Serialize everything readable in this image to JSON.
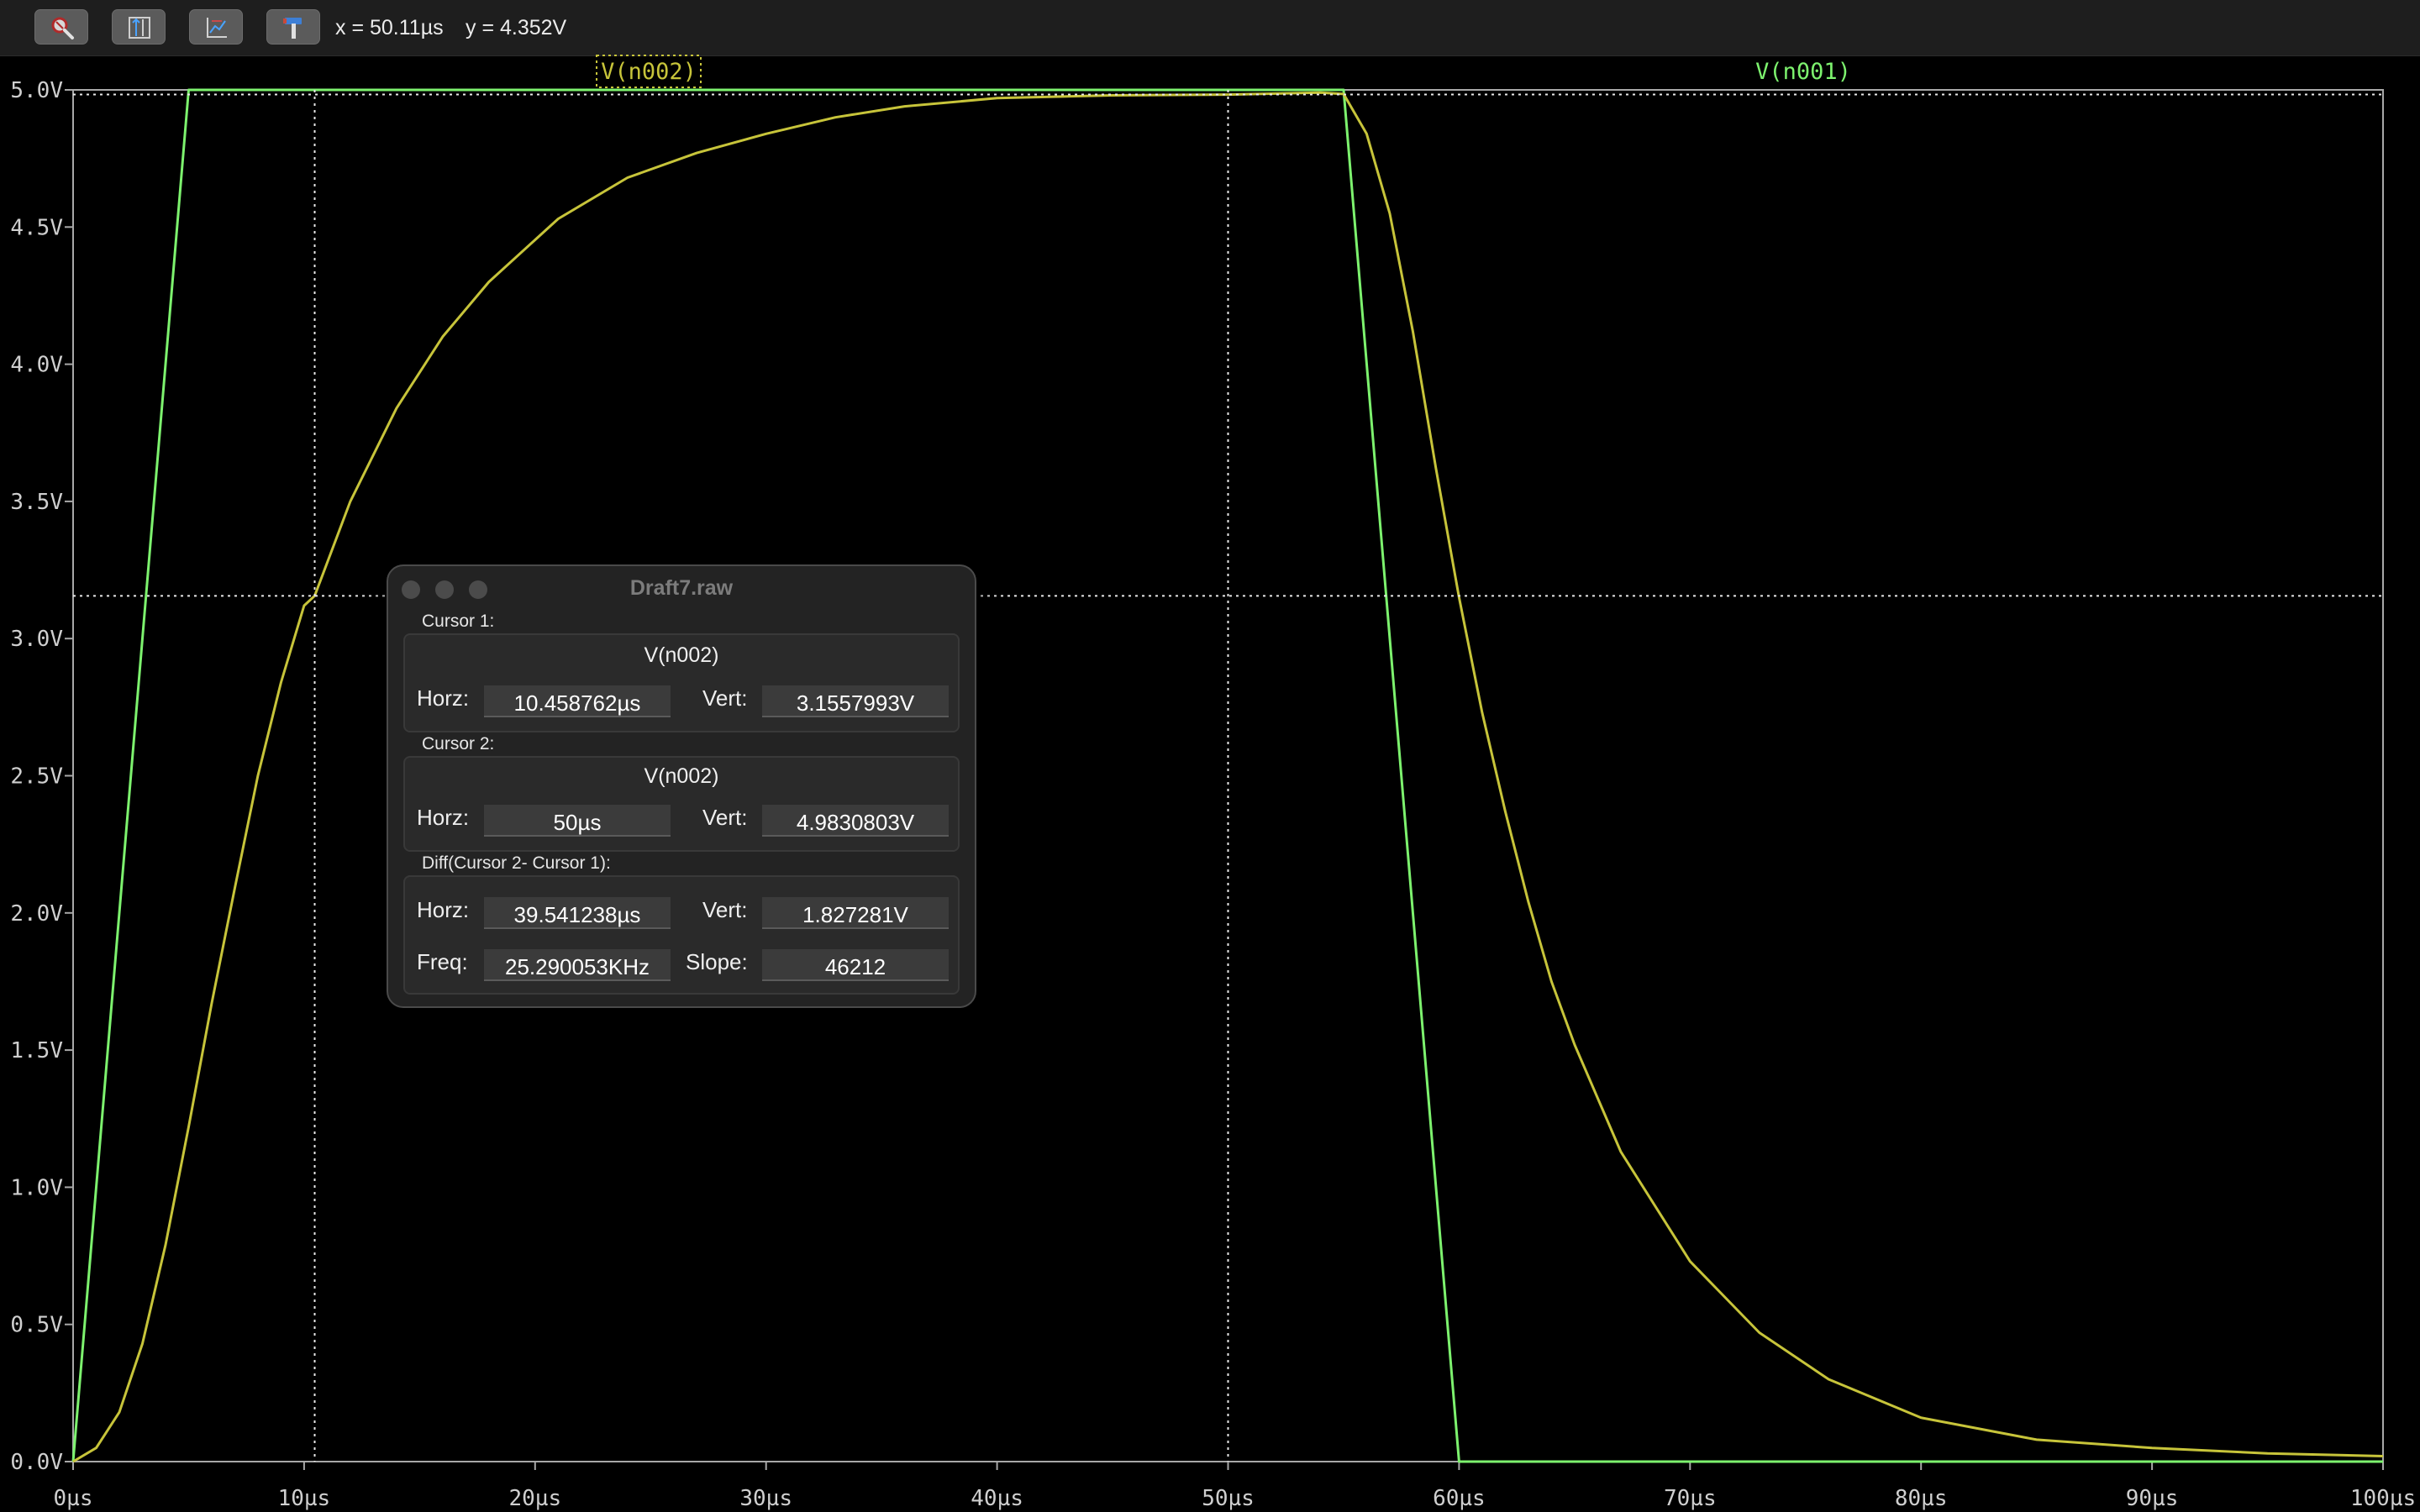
{
  "toolbar": {
    "buttons": [
      {
        "name": "autorange-button",
        "icon": "zoom-magnifier-icon"
      },
      {
        "name": "fit-vertical-button",
        "icon": "vertical-fit-icon"
      },
      {
        "name": "plot-settings-button",
        "icon": "plot-settings-icon"
      },
      {
        "name": "probe-button",
        "icon": "hammer-icon"
      }
    ],
    "x_readout": "x = 50.11µs",
    "y_readout": "y = 4.352V"
  },
  "chart_data": {
    "type": "line",
    "x_unit": "µs",
    "y_unit": "V",
    "xlim": [
      0,
      100
    ],
    "ylim": [
      0,
      5
    ],
    "x_ticks": [
      "0µs",
      "10µs",
      "20µs",
      "30µs",
      "40µs",
      "50µs",
      "60µs",
      "70µs",
      "80µs",
      "90µs",
      "100µs"
    ],
    "y_ticks": [
      "0.0V",
      "0.5V",
      "1.0V",
      "1.5V",
      "2.0V",
      "2.5V",
      "3.0V",
      "3.5V",
      "4.0V",
      "4.5V",
      "5.0V"
    ],
    "series": [
      {
        "name": "V(n001)",
        "color": "#7df26e",
        "x": [
          0,
          5,
          55,
          60,
          100
        ],
        "y": [
          0,
          5,
          5,
          0,
          0
        ]
      },
      {
        "name": "V(n002)",
        "color": "#c7c43a",
        "x": [
          0,
          1,
          2,
          3,
          4,
          5,
          6,
          7,
          8,
          9,
          10,
          10.46,
          12,
          14,
          16,
          18,
          21,
          24,
          27,
          30,
          33,
          36,
          40,
          45,
          50,
          54,
          55,
          56,
          57,
          58,
          59,
          60,
          61,
          62,
          63,
          64,
          65,
          67,
          70,
          73,
          76,
          80,
          85,
          90,
          95,
          100
        ],
        "y": [
          0,
          0.05,
          0.18,
          0.43,
          0.79,
          1.22,
          1.67,
          2.09,
          2.5,
          2.84,
          3.12,
          3.156,
          3.5,
          3.84,
          4.1,
          4.3,
          4.53,
          4.68,
          4.77,
          4.84,
          4.9,
          4.94,
          4.97,
          4.98,
          4.983,
          4.99,
          4.985,
          4.84,
          4.55,
          4.12,
          3.62,
          3.15,
          2.73,
          2.37,
          2.04,
          1.75,
          1.52,
          1.13,
          0.73,
          0.47,
          0.3,
          0.16,
          0.08,
          0.05,
          0.03,
          0.02
        ]
      }
    ],
    "cursors": [
      {
        "name": "Cursor 1",
        "x": 10.458762,
        "y": 3.1557993
      },
      {
        "name": "Cursor 2",
        "x": 50,
        "y": 4.9830803
      }
    ],
    "grid": false,
    "legend": "top"
  },
  "cursor_dialog": {
    "title": "Draft7.raw",
    "cursor1": {
      "label": "Cursor 1:",
      "signal": "V(n002)",
      "horz_label": "Horz:",
      "horz": "10.458762µs",
      "vert_label": "Vert:",
      "vert": "3.1557993V"
    },
    "cursor2": {
      "label": "Cursor 2:",
      "signal": "V(n002)",
      "horz_label": "Horz:",
      "horz": "50µs",
      "vert_label": "Vert:",
      "vert": "4.9830803V"
    },
    "diff": {
      "label": "Diff(Cursor 2- Cursor 1):",
      "horz_label": "Horz:",
      "horz": "39.541238µs",
      "vert_label": "Vert:",
      "vert": "1.827281V",
      "freq_label": "Freq:",
      "freq": "25.290053KHz",
      "slope_label": "Slope:",
      "slope": "46212"
    }
  }
}
